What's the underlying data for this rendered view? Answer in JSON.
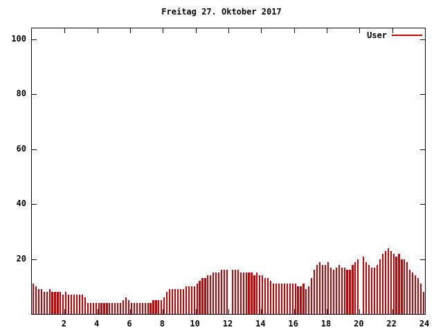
{
  "chart_data": {
    "type": "bar",
    "title": "Freitag 27. Oktober 2017",
    "series_name": "User",
    "bar_color": "#cc0000",
    "x_start_hour": 0,
    "x_end_hour": 24,
    "sample_interval_minutes": 10,
    "xticks": [
      2,
      4,
      6,
      8,
      10,
      12,
      14,
      16,
      18,
      20,
      22,
      24
    ],
    "yticks": [
      20,
      40,
      60,
      80,
      100
    ],
    "ylim": [
      0,
      104
    ],
    "xlabel": "",
    "ylabel": "",
    "legend_position": "top-right",
    "grid": false,
    "values": [
      11,
      10,
      9,
      9,
      8,
      8,
      9,
      8,
      8,
      8,
      8,
      7,
      8,
      7,
      7,
      7,
      7,
      7,
      7,
      6,
      4,
      4,
      4,
      4,
      4,
      4,
      4,
      4,
      4,
      4,
      4,
      4,
      4,
      5,
      6,
      5,
      4,
      4,
      4,
      4,
      4,
      4,
      4,
      4,
      5,
      5,
      5,
      5,
      6,
      8,
      9,
      9,
      9,
      9,
      9,
      9,
      10,
      10,
      10,
      10,
      11,
      12,
      13,
      13,
      14,
      14,
      15,
      15,
      15,
      16,
      16,
      16,
      0,
      16,
      16,
      16,
      15,
      15,
      15,
      15,
      15,
      14,
      15,
      14,
      14,
      13,
      13,
      12,
      11,
      11,
      11,
      11,
      11,
      11,
      11,
      11,
      11,
      10,
      10,
      11,
      9,
      10,
      13,
      16,
      18,
      19,
      18,
      18,
      19,
      17,
      16,
      17,
      18,
      17,
      17,
      16,
      16,
      18,
      19,
      20,
      0,
      21,
      19,
      18,
      17,
      17,
      18,
      20,
      22,
      23,
      24,
      23,
      22,
      21,
      22,
      20,
      20,
      19,
      16,
      15,
      14,
      13,
      11,
      8
    ]
  }
}
